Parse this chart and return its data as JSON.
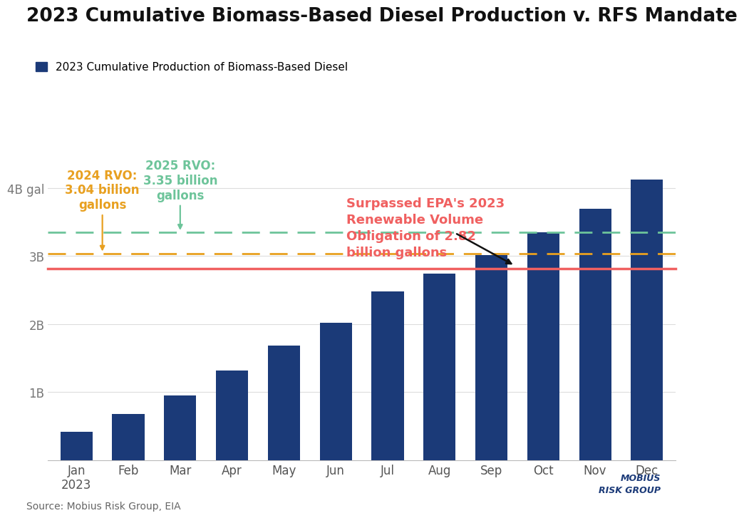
{
  "title": "2023 Cumulative Biomass-Based Diesel Production v. RFS Mandate",
  "legend_label": "2023 Cumulative Production of Biomass-Based Diesel",
  "bar_color": "#1b3a78",
  "categories": [
    "Jan\n2023",
    "Feb",
    "Mar",
    "Apr",
    "May",
    "Jun",
    "Jul",
    "Aug",
    "Sep",
    "Oct",
    "Nov",
    "Dec"
  ],
  "values": [
    0.42,
    0.68,
    0.95,
    1.32,
    1.68,
    2.02,
    2.48,
    2.74,
    3.02,
    3.35,
    3.7,
    4.12
  ],
  "epa_line": 2.82,
  "rvo_2024": 3.04,
  "rvo_2025": 3.35,
  "epa_line_color": "#f06060",
  "rvo_2024_color": "#e8a020",
  "rvo_2025_color": "#6dc49a",
  "ylim_max": 4.55,
  "annotation_2024_rvo": "2024 RVO:\n3.04 billion\ngallons",
  "annotation_2025_rvo": "2025 RVO:\n3.35 billion\ngallons",
  "annotation_epa_line1": "Surpassed EPA's 2023",
  "annotation_epa_line2": "Renewable Volume",
  "annotation_epa_line3": "Obligation of 2.82",
  "annotation_epa_line4": "billion gallons",
  "source_text": "Source: Mobius Risk Group, EIA",
  "background_color": "#ffffff",
  "grid_color": "#dddddd"
}
